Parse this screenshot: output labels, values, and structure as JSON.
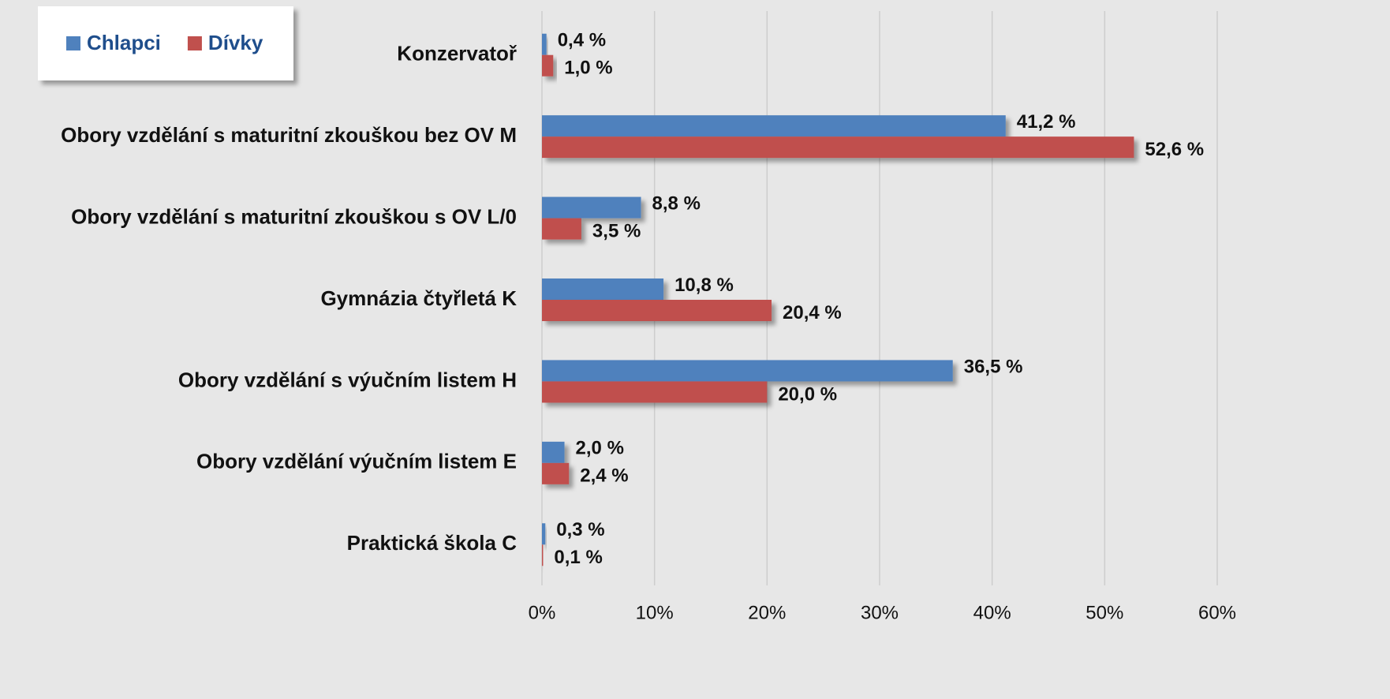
{
  "chart_data": {
    "type": "hbar",
    "categories": [
      "Konzervatoř",
      "Obory vzdělání s maturitní zkouškou bez OV M",
      "Obory vzdělání s maturitní zkouškou s OV L/0",
      "Gymnázia čtyřletá K",
      "Obory vzdělání s výučním listem H",
      "Obory vzdělání výučním listem E",
      "Praktická škola C"
    ],
    "series": [
      {
        "name": "Chlapci",
        "color": "#4f81bd",
        "values": [
          0.4,
          41.2,
          8.8,
          10.8,
          36.5,
          2.0,
          0.3
        ],
        "value_labels": [
          "0,4 %",
          "41,2 %",
          "8,8 %",
          "10,8 %",
          "36,5 %",
          "2,0 %",
          "0,3 %"
        ]
      },
      {
        "name": "Dívky",
        "color": "#c0504d",
        "values": [
          1.0,
          52.6,
          3.5,
          20.4,
          20.0,
          2.4,
          0.1
        ],
        "value_labels": [
          "1,0 %",
          "52,6 %",
          "3,5 %",
          "20,4 %",
          "20,0 %",
          "2,4 %",
          "0,1 %"
        ]
      }
    ],
    "xlim": [
      0,
      60
    ],
    "xticks": [
      {
        "value": 0,
        "label": "0%"
      },
      {
        "value": 10,
        "label": "10%"
      },
      {
        "value": 20,
        "label": "20%"
      },
      {
        "value": 30,
        "label": "30%"
      },
      {
        "value": 40,
        "label": "40%"
      },
      {
        "value": 50,
        "label": "50%"
      },
      {
        "value": 60,
        "label": "60%"
      }
    ],
    "grid": true,
    "legend": "top-left"
  }
}
